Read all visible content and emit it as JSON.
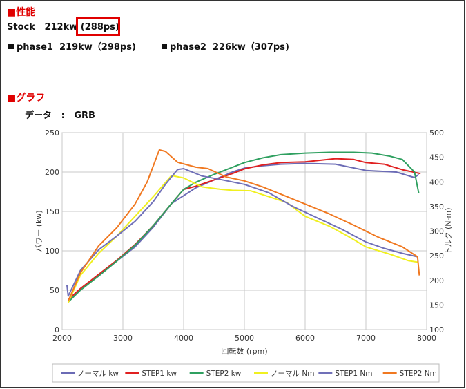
{
  "section1": {
    "title": "■性能"
  },
  "stock": {
    "label": "Stock",
    "kw": "212kw",
    "ps": "(288ps)"
  },
  "phase1": {
    "label": "phase1",
    "value": "219kw（298ps)"
  },
  "phase2": {
    "label": "phase2",
    "value": "226kw（307ps)"
  },
  "section2": {
    "title": "■グラフ"
  },
  "data_line": {
    "label": "データ",
    "sep": ":",
    "value": "GRB"
  },
  "colors": {
    "accent_red": "#e00000"
  },
  "chart_data": {
    "type": "line",
    "xlabel": "回転数 (rpm)",
    "ylabel_left": "パワー (kw)",
    "ylabel_right": "トルク (N-m)",
    "xlim": [
      2000,
      8000
    ],
    "ylim_left": [
      0,
      250
    ],
    "ylim_right": [
      100,
      500
    ],
    "x_ticks": [
      2000,
      3000,
      4000,
      5000,
      6000,
      7000,
      8000
    ],
    "y_ticks_left": [
      0,
      50,
      100,
      150,
      200,
      250
    ],
    "y_ticks_right": [
      100,
      150,
      200,
      250,
      300,
      350,
      400,
      450,
      500
    ],
    "grid": true,
    "legend_position": "bottom",
    "series": [
      {
        "name": "ノーマル kw",
        "axis": "left",
        "color": "#6b6bb5",
        "points": [
          [
            2100,
            38
          ],
          [
            2300,
            52
          ],
          [
            2600,
            68
          ],
          [
            2900,
            87
          ],
          [
            3200,
            105
          ],
          [
            3500,
            130
          ],
          [
            3800,
            160
          ],
          [
            4000,
            170
          ],
          [
            4200,
            180
          ],
          [
            4500,
            190
          ],
          [
            4800,
            200
          ],
          [
            5000,
            205
          ],
          [
            5300,
            208
          ],
          [
            5600,
            210
          ],
          [
            6000,
            211
          ],
          [
            6500,
            210
          ],
          [
            7000,
            202
          ],
          [
            7500,
            200
          ],
          [
            7800,
            193
          ],
          [
            7870,
            197
          ]
        ]
      },
      {
        "name": "STEP1 kw",
        "axis": "left",
        "color": "#e02020",
        "points": [
          [
            2100,
            38
          ],
          [
            2300,
            52
          ],
          [
            2600,
            70
          ],
          [
            2900,
            88
          ],
          [
            3200,
            108
          ],
          [
            3500,
            132
          ],
          [
            3800,
            160
          ],
          [
            4000,
            178
          ],
          [
            4200,
            182
          ],
          [
            4500,
            190
          ],
          [
            4800,
            198
          ],
          [
            5000,
            204
          ],
          [
            5300,
            209
          ],
          [
            5600,
            212
          ],
          [
            6000,
            213
          ],
          [
            6500,
            217
          ],
          [
            6800,
            216
          ],
          [
            7000,
            212
          ],
          [
            7300,
            210
          ],
          [
            7600,
            203
          ],
          [
            7900,
            198
          ]
        ]
      },
      {
        "name": "STEP2 kw",
        "axis": "left",
        "color": "#2fa060",
        "points": [
          [
            2100,
            35
          ],
          [
            2300,
            50
          ],
          [
            2600,
            68
          ],
          [
            2900,
            87
          ],
          [
            3200,
            107
          ],
          [
            3500,
            132
          ],
          [
            3800,
            160
          ],
          [
            4000,
            178
          ],
          [
            4200,
            187
          ],
          [
            4500,
            197
          ],
          [
            4800,
            206
          ],
          [
            5000,
            212
          ],
          [
            5300,
            218
          ],
          [
            5600,
            222
          ],
          [
            6000,
            224
          ],
          [
            6400,
            225
          ],
          [
            6800,
            225
          ],
          [
            7100,
            224
          ],
          [
            7400,
            220
          ],
          [
            7600,
            216
          ],
          [
            7800,
            200
          ],
          [
            7870,
            173
          ]
        ]
      },
      {
        "name": "ノーマル Nm",
        "axis": "right",
        "color": "#f0f020",
        "points": [
          [
            2100,
            155
          ],
          [
            2300,
            210
          ],
          [
            2600,
            255
          ],
          [
            2900,
            290
          ],
          [
            3200,
            330
          ],
          [
            3500,
            370
          ],
          [
            3800,
            413
          ],
          [
            4000,
            408
          ],
          [
            4300,
            390
          ],
          [
            4600,
            385
          ],
          [
            4800,
            383
          ],
          [
            5100,
            382
          ],
          [
            5400,
            370
          ],
          [
            5700,
            358
          ],
          [
            6000,
            330
          ],
          [
            6400,
            310
          ],
          [
            6700,
            290
          ],
          [
            7000,
            268
          ],
          [
            7400,
            253
          ],
          [
            7700,
            240
          ],
          [
            7850,
            237
          ]
        ]
      },
      {
        "name": "STEP1 Nm",
        "axis": "right",
        "color": "#7070b8",
        "points": [
          [
            2080,
            190
          ],
          [
            2100,
            168
          ],
          [
            2300,
            220
          ],
          [
            2600,
            262
          ],
          [
            2900,
            290
          ],
          [
            3200,
            320
          ],
          [
            3500,
            360
          ],
          [
            3700,
            395
          ],
          [
            3900,
            425
          ],
          [
            4000,
            427
          ],
          [
            4300,
            412
          ],
          [
            4600,
            405
          ],
          [
            5000,
            395
          ],
          [
            5400,
            378
          ],
          [
            5800,
            350
          ],
          [
            6200,
            327
          ],
          [
            6600,
            304
          ],
          [
            7000,
            278
          ],
          [
            7300,
            265
          ],
          [
            7600,
            255
          ],
          [
            7850,
            248
          ]
        ]
      },
      {
        "name": "STEP2 Nm",
        "axis": "right",
        "color": "#f07820",
        "points": [
          [
            2100,
            158
          ],
          [
            2300,
            215
          ],
          [
            2600,
            270
          ],
          [
            2900,
            307
          ],
          [
            3200,
            355
          ],
          [
            3400,
            400
          ],
          [
            3600,
            465
          ],
          [
            3700,
            462
          ],
          [
            3900,
            440
          ],
          [
            4200,
            430
          ],
          [
            4400,
            427
          ],
          [
            4700,
            410
          ],
          [
            5000,
            402
          ],
          [
            5300,
            390
          ],
          [
            5700,
            370
          ],
          [
            6000,
            355
          ],
          [
            6400,
            335
          ],
          [
            6800,
            312
          ],
          [
            7200,
            288
          ],
          [
            7600,
            268
          ],
          [
            7850,
            248
          ],
          [
            7880,
            210
          ]
        ]
      }
    ]
  }
}
